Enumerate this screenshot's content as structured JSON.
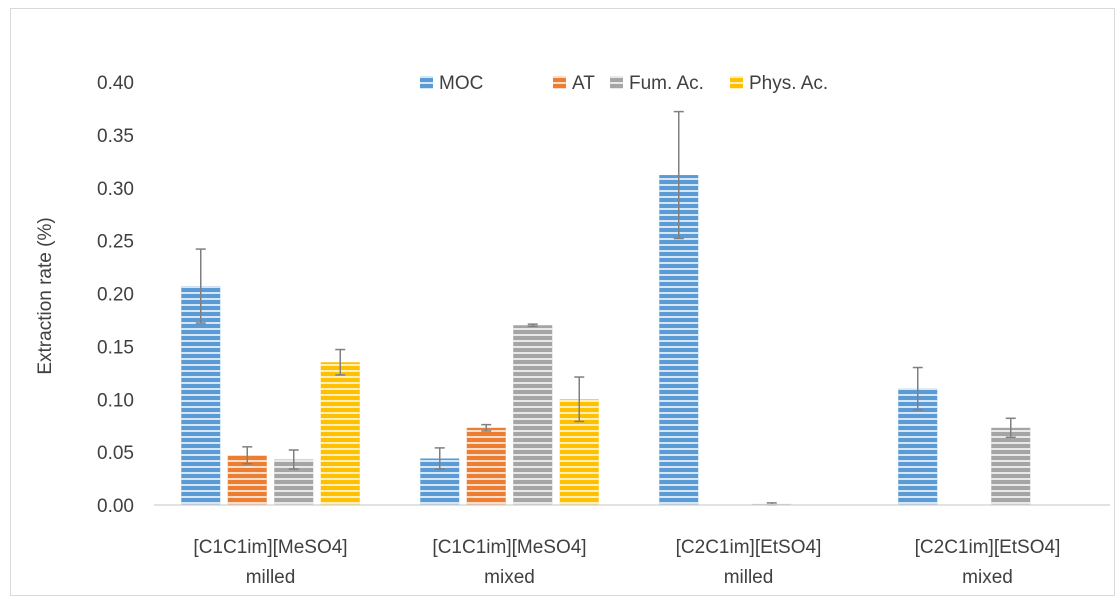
{
  "chart_data": {
    "type": "bar",
    "title": "",
    "xlabel": "",
    "ylabel": "Extraction rate (%)",
    "ylim": [
      0,
      0.4
    ],
    "yticks": [
      "0.00",
      "0.05",
      "0.10",
      "0.15",
      "0.20",
      "0.25",
      "0.30",
      "0.35",
      "0.40"
    ],
    "grid": false,
    "legend_position": "top",
    "categories": [
      [
        "[C1C1im][MeSO4]",
        "milled"
      ],
      [
        "[C1C1im][MeSO4]",
        "mixed"
      ],
      [
        "[C2C1im][EtSO4]",
        "milled"
      ],
      [
        "[C2C1im][EtSO4]",
        "mixed"
      ]
    ],
    "series": [
      {
        "name": "MOC",
        "color": "#5b9bd5",
        "values": [
          0.207,
          0.044,
          0.312,
          0.11
        ],
        "errors": [
          0.035,
          0.01,
          0.06,
          0.02
        ]
      },
      {
        "name": "AT",
        "color": "#ed7d31",
        "values": [
          0.047,
          0.073,
          0.0,
          0.0
        ],
        "errors": [
          0.008,
          0.003,
          0.0,
          0.0
        ]
      },
      {
        "name": "Fum. Ac.",
        "color": "#a5a5a5",
        "values": [
          0.043,
          0.17,
          0.001,
          0.073
        ],
        "errors": [
          0.009,
          0.001,
          0.001,
          0.009
        ]
      },
      {
        "name": "Phys. Ac.",
        "color": "#ffc000",
        "values": [
          0.135,
          0.1,
          0.0,
          0.0
        ],
        "errors": [
          0.012,
          0.021,
          0.0,
          0.0
        ]
      }
    ]
  }
}
